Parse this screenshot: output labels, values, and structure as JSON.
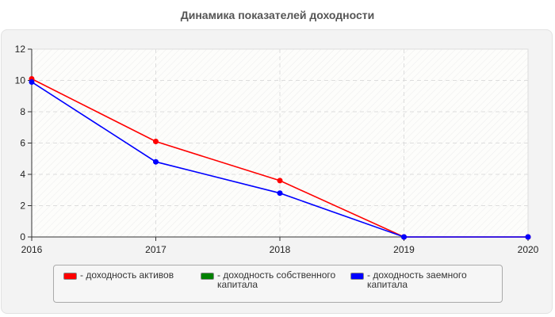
{
  "chart_data": {
    "type": "line",
    "title": "Динамика показателей доходности",
    "xlabel": "",
    "ylabel": "",
    "categories": [
      "2016",
      "2017",
      "2018",
      "2019",
      "2020"
    ],
    "ylim": [
      0,
      12
    ],
    "yticks": [
      0,
      2,
      4,
      6,
      8,
      10,
      12
    ],
    "grid": true,
    "legend_position": "bottom",
    "series": [
      {
        "name": "доходность активов",
        "color": "#ff0000",
        "values": [
          10.1,
          6.1,
          3.6,
          0,
          0
        ]
      },
      {
        "name": "доходность собственного капитала",
        "color": "#008000",
        "values": [
          null,
          null,
          null,
          null,
          null
        ]
      },
      {
        "name": "доходность заемного капитала",
        "color": "#0000ff",
        "values": [
          9.9,
          4.8,
          2.8,
          0,
          0
        ]
      }
    ]
  },
  "legend": {
    "items": [
      {
        "label": "- доходность активов",
        "color": "#ff0000"
      },
      {
        "label": "- доходность собственного капитала",
        "color": "#008000"
      },
      {
        "label": "- доходность заемного капитала",
        "color": "#0000ff"
      }
    ]
  }
}
